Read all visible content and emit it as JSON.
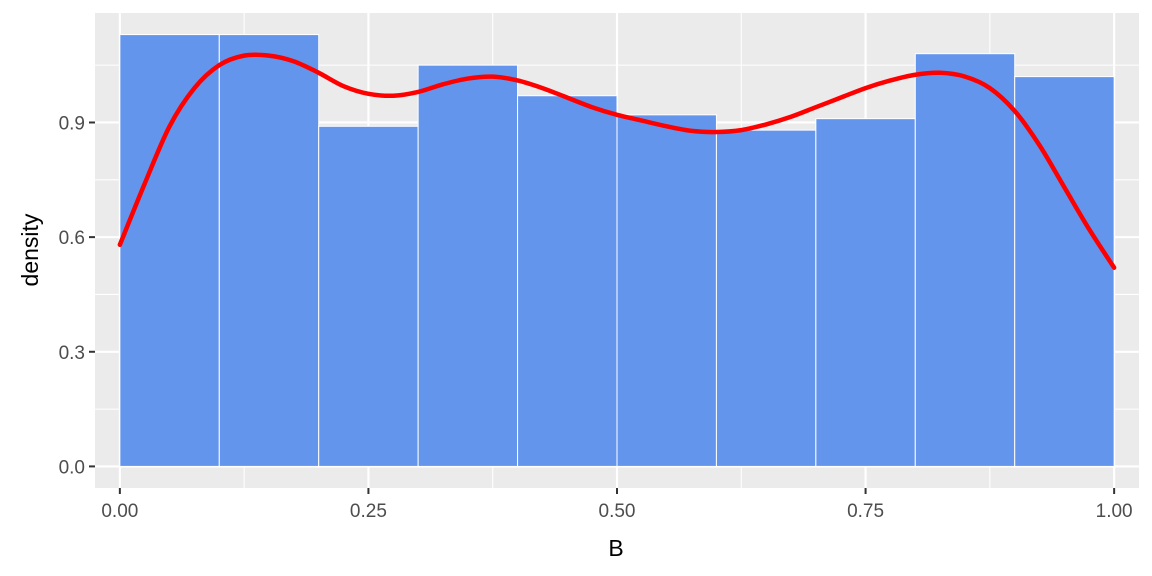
{
  "chart_data": {
    "type": "histogram",
    "xlabel": "B",
    "ylabel": "density",
    "xlim": [
      -0.025,
      1.025
    ],
    "ylim": [
      -0.0565,
      1.1865
    ],
    "x_ticks": [
      0.0,
      0.25,
      0.5,
      0.75,
      1.0
    ],
    "x_tick_labels": [
      "0.00",
      "0.25",
      "0.50",
      "0.75",
      "1.00"
    ],
    "y_ticks": [
      0.0,
      0.3,
      0.6,
      0.9
    ],
    "y_tick_labels": [
      "0.0",
      "0.3",
      "0.6",
      "0.9"
    ],
    "grid": true,
    "bins": [
      {
        "start": 0.0,
        "end": 0.1,
        "density": 1.13
      },
      {
        "start": 0.1,
        "end": 0.2,
        "density": 1.13
      },
      {
        "start": 0.2,
        "end": 0.3,
        "density": 0.89
      },
      {
        "start": 0.3,
        "end": 0.4,
        "density": 1.05
      },
      {
        "start": 0.4,
        "end": 0.5,
        "density": 0.97
      },
      {
        "start": 0.5,
        "end": 0.6,
        "density": 0.92
      },
      {
        "start": 0.6,
        "end": 0.7,
        "density": 0.88
      },
      {
        "start": 0.7,
        "end": 0.8,
        "density": 0.91
      },
      {
        "start": 0.8,
        "end": 0.9,
        "density": 1.08
      },
      {
        "start": 0.9,
        "end": 1.0,
        "density": 1.02
      }
    ],
    "density_curve": {
      "x": [
        0.0,
        0.025,
        0.05,
        0.075,
        0.1,
        0.125,
        0.15,
        0.175,
        0.2,
        0.225,
        0.25,
        0.275,
        0.3,
        0.325,
        0.35,
        0.375,
        0.4,
        0.425,
        0.45,
        0.475,
        0.5,
        0.525,
        0.55,
        0.575,
        0.6,
        0.625,
        0.65,
        0.675,
        0.7,
        0.725,
        0.75,
        0.775,
        0.8,
        0.825,
        0.85,
        0.875,
        0.9,
        0.925,
        0.95,
        0.975,
        1.0
      ],
      "y": [
        0.58,
        0.74,
        0.89,
        0.99,
        1.05,
        1.075,
        1.075,
        1.06,
        1.03,
        0.995,
        0.975,
        0.97,
        0.98,
        1.0,
        1.015,
        1.02,
        1.01,
        0.99,
        0.965,
        0.94,
        0.92,
        0.905,
        0.89,
        0.878,
        0.875,
        0.88,
        0.895,
        0.915,
        0.94,
        0.965,
        0.99,
        1.01,
        1.025,
        1.03,
        1.02,
        0.99,
        0.93,
        0.84,
        0.73,
        0.62,
        0.52
      ]
    },
    "colors": {
      "bar_fill": "#6495ED",
      "bar_outline": "#FFFFFF",
      "line": "#FF0000",
      "panel_background": "#EBEBEB",
      "grid": "#FFFFFF"
    }
  }
}
